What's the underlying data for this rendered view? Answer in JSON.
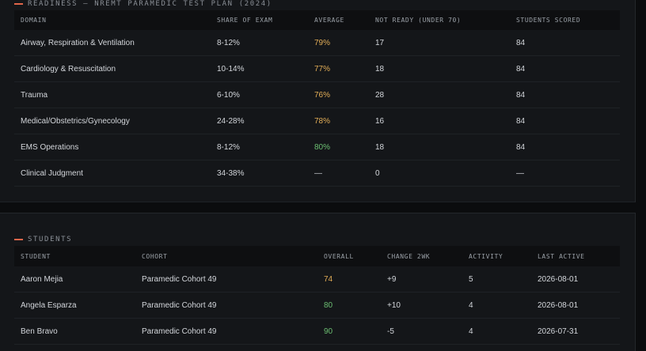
{
  "readiness": {
    "title": "Readiness — NREMT Paramedic Test Plan (2024)",
    "accent_color": "#e0664a",
    "columns": [
      "Domain",
      "Share of Exam",
      "Average",
      "Not Ready (under 70)",
      "Students Scored"
    ],
    "rows": [
      {
        "domain": "Airway, Respiration & Ventilation",
        "share": "8-12%",
        "average": "79%",
        "average_status": "amber",
        "not_ready": "17",
        "scored": "84"
      },
      {
        "domain": "Cardiology & Resuscitation",
        "share": "10-14%",
        "average": "77%",
        "average_status": "amber",
        "not_ready": "18",
        "scored": "84"
      },
      {
        "domain": "Trauma",
        "share": "6-10%",
        "average": "76%",
        "average_status": "amber",
        "not_ready": "28",
        "scored": "84"
      },
      {
        "domain": "Medical/Obstetrics/Gynecology",
        "share": "24-28%",
        "average": "78%",
        "average_status": "amber",
        "not_ready": "16",
        "scored": "84"
      },
      {
        "domain": "EMS Operations",
        "share": "8-12%",
        "average": "80%",
        "average_status": "green",
        "not_ready": "18",
        "scored": "84"
      },
      {
        "domain": "Clinical Judgment",
        "share": "34-38%",
        "average": "—",
        "average_status": "none",
        "not_ready": "0",
        "scored": "—"
      }
    ]
  },
  "students": {
    "title": "Students",
    "columns": [
      "Student",
      "Cohort",
      "Overall",
      "Change 2wk",
      "Activity",
      "Last Active"
    ],
    "rows": [
      {
        "name": "Aaron Mejia",
        "cohort": "Paramedic Cohort 49",
        "overall": "74",
        "overall_status": "amber",
        "change": "+9",
        "activity": "5",
        "last_active": "2026-08-01"
      },
      {
        "name": "Angela Esparza",
        "cohort": "Paramedic Cohort 49",
        "overall": "80",
        "overall_status": "green",
        "change": "+10",
        "activity": "4",
        "last_active": "2026-08-01"
      },
      {
        "name": "Ben Bravo",
        "cohort": "Paramedic Cohort 49",
        "overall": "90",
        "overall_status": "green",
        "change": "-5",
        "activity": "4",
        "last_active": "2026-07-31"
      }
    ]
  },
  "colors": {
    "amber": "#e2ad57",
    "green": "#6cbf72",
    "background": "#0b0c0e",
    "panel": "#141619"
  }
}
